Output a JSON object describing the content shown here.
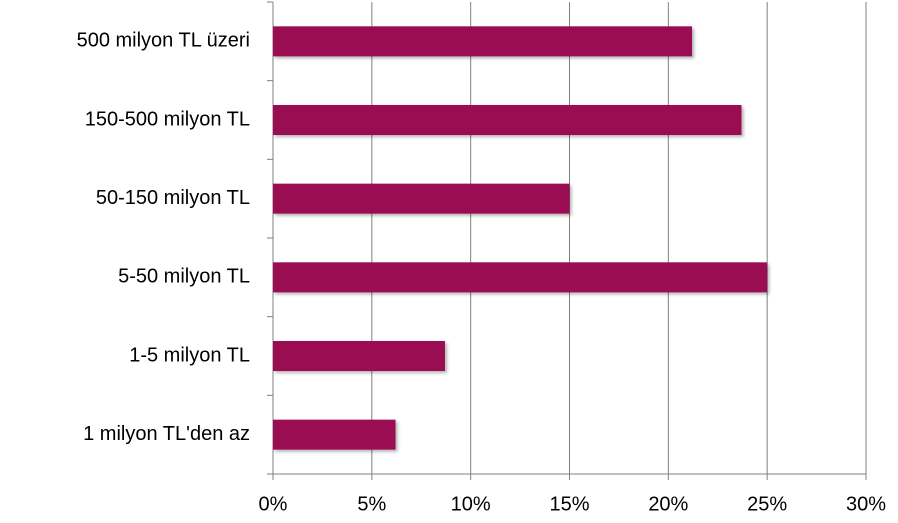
{
  "chart_data": {
    "type": "bar",
    "orientation": "horizontal",
    "categories": [
      "500 milyon TL üzeri",
      "150-500 milyon TL",
      "50-150 milyon TL",
      "5-50 milyon TL",
      "1-5 milyon TL",
      "1 milyon TL'den az"
    ],
    "values": [
      21.2,
      23.7,
      15.0,
      25.0,
      8.7,
      6.2
    ],
    "color": "#9b0a52",
    "xlim": [
      0,
      30
    ],
    "xticks": [
      {
        "value": 0,
        "label": "0%"
      },
      {
        "value": 5,
        "label": "5%"
      },
      {
        "value": 10,
        "label": "10%"
      },
      {
        "value": 15,
        "label": "15%"
      },
      {
        "value": 20,
        "label": "20%"
      },
      {
        "value": 25,
        "label": "25%"
      },
      {
        "value": 30,
        "label": "30%"
      }
    ],
    "grid": true
  }
}
